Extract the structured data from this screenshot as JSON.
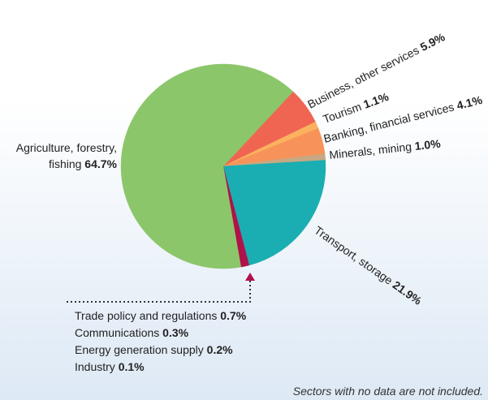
{
  "chart_data": {
    "type": "pie",
    "slices": [
      {
        "label": "Business, other services",
        "value": 5.9,
        "display": "5.9%",
        "color": "#ef6552"
      },
      {
        "label": "Tourism",
        "value": 1.1,
        "display": "1.1%",
        "color": "#fbb25e"
      },
      {
        "label": "Banking, financial services",
        "value": 4.1,
        "display": "4.1%",
        "color": "#f7935a"
      },
      {
        "label": "Minerals, mining",
        "value": 1.0,
        "display": "1.0%",
        "color": "#c8a882"
      },
      {
        "label": "Transport, storage",
        "value": 21.9,
        "display": "21.9%",
        "color": "#1aaeb2"
      },
      {
        "label": "Trade policy and regulations",
        "value": 0.7,
        "display": "0.7%",
        "color": "#b0124a"
      },
      {
        "label": "Communications",
        "value": 0.3,
        "display": "0.3%",
        "color": "#b0124a"
      },
      {
        "label": "Energy generation supply",
        "value": 0.2,
        "display": "0.2%",
        "color": "#b0124a"
      },
      {
        "label": "Industry",
        "value": 0.1,
        "display": "0.1%",
        "color": "#b0124a"
      },
      {
        "label": "Agriculture, forestry, fishing",
        "value": 64.7,
        "display": "64.7%",
        "color": "#8cc66a"
      }
    ],
    "note": "Sectors with no data are not included."
  }
}
